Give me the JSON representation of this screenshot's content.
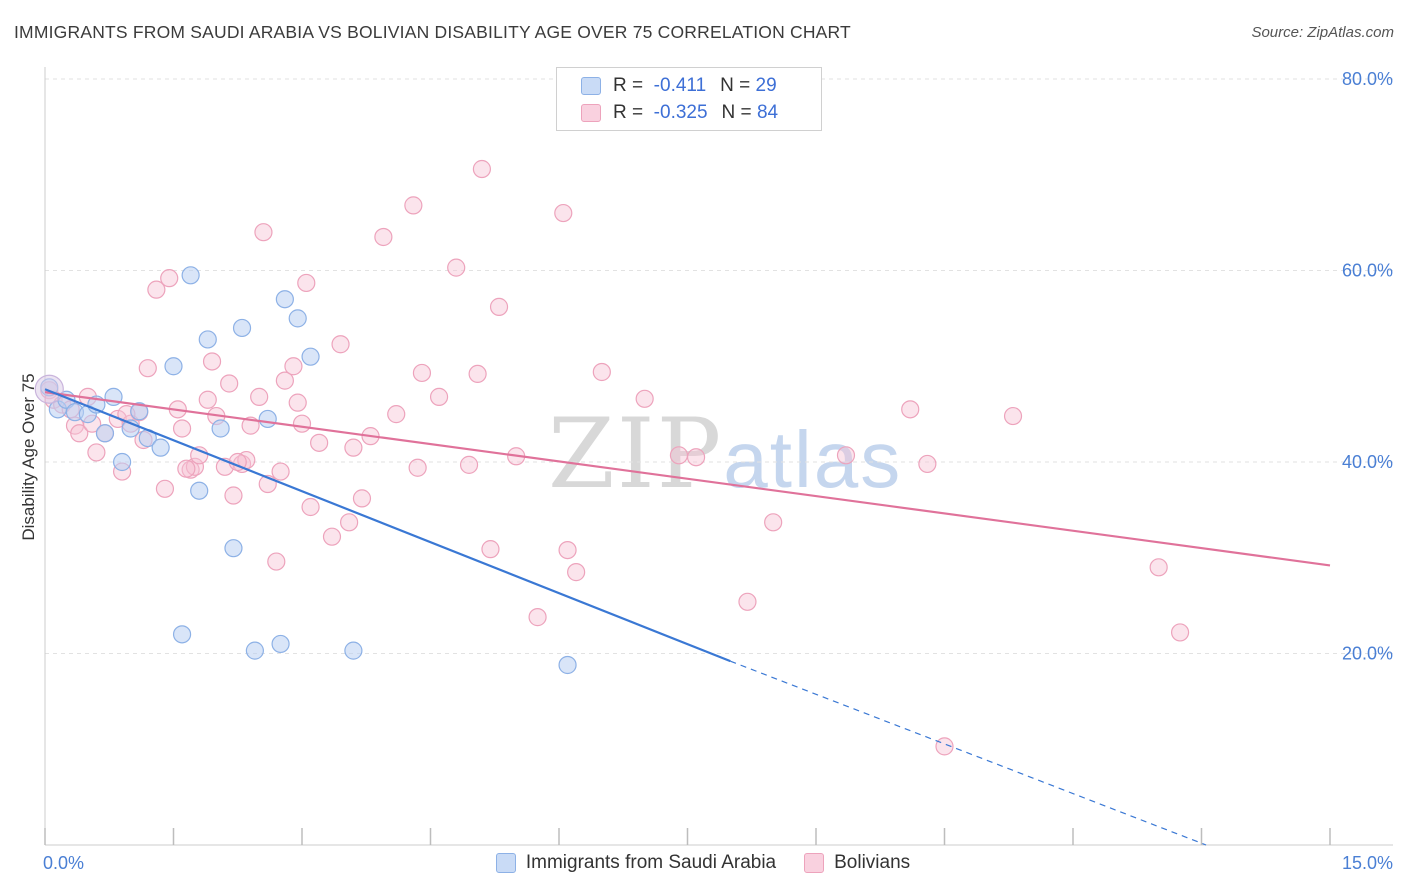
{
  "header": {
    "title": "IMMIGRANTS FROM SAUDI ARABIA VS BOLIVIAN DISABILITY AGE OVER 75 CORRELATION CHART",
    "source": "Source: ZipAtlas.com"
  },
  "watermark": {
    "zip": "ZIP",
    "atlas": "atlas"
  },
  "legend": {
    "rows": [
      {
        "r_label": "R =",
        "r_value": "-0.411",
        "n_label": "N =",
        "n_value": "29"
      },
      {
        "r_label": "R =",
        "r_value": "-0.325",
        "n_label": "N =",
        "n_value": "84"
      }
    ]
  },
  "bottom_legend": {
    "items": [
      {
        "label": "Immigrants from Saudi Arabia"
      },
      {
        "label": "Bolivians"
      }
    ]
  },
  "colors": {
    "blue_fill": "#b9d0f3",
    "blue_stroke": "#8db1e6",
    "blue_line": "#3a78d4",
    "pink_fill": "#f6c3d4",
    "pink_stroke": "#eda3bc",
    "pink_line": "#e0729a",
    "grid": "#e2e2e2",
    "tick_label": "#4a7fd4"
  },
  "chart_data": {
    "type": "scatter",
    "title": "IMMIGRANTS FROM SAUDI ARABIA VS BOLIVIAN DISABILITY AGE OVER 75 CORRELATION CHART",
    "xlabel": "",
    "ylabel": "Disability Age Over 75",
    "xlim": [
      0,
      15
    ],
    "ylim": [
      0,
      80
    ],
    "x_tick_labels": [
      "0.0%",
      "15.0%"
    ],
    "y_ticks": [
      20,
      40,
      60,
      80
    ],
    "y_tick_labels": [
      "20.0%",
      "40.0%",
      "60.0%",
      "80.0%"
    ],
    "grid": true,
    "legend_position": "top-center",
    "series": [
      {
        "name": "Immigrants from Saudi Arabia",
        "color": "#b9d0f3",
        "points": [
          [
            0.05,
            47.8
          ],
          [
            0.15,
            45.5
          ],
          [
            0.25,
            46.5
          ],
          [
            0.35,
            45.2
          ],
          [
            0.5,
            45.0
          ],
          [
            0.6,
            46.0
          ],
          [
            0.7,
            43.0
          ],
          [
            0.8,
            46.8
          ],
          [
            0.9,
            40.0
          ],
          [
            1.0,
            43.5
          ],
          [
            1.1,
            45.3
          ],
          [
            1.2,
            42.5
          ],
          [
            1.35,
            41.5
          ],
          [
            1.5,
            50.0
          ],
          [
            1.6,
            22.0
          ],
          [
            1.7,
            59.5
          ],
          [
            1.8,
            37.0
          ],
          [
            1.9,
            52.8
          ],
          [
            2.05,
            43.5
          ],
          [
            2.2,
            31.0
          ],
          [
            2.3,
            54.0
          ],
          [
            2.45,
            20.3
          ],
          [
            2.6,
            44.5
          ],
          [
            2.75,
            21.0
          ],
          [
            2.8,
            57.0
          ],
          [
            2.95,
            55.0
          ],
          [
            3.1,
            51.0
          ],
          [
            3.6,
            20.3
          ],
          [
            6.1,
            18.8
          ]
        ],
        "trend": {
          "x": [
            0,
            8.0
          ],
          "y": [
            47.6,
            19.2
          ],
          "dashed_to": [
            15,
            -5.0
          ]
        }
      },
      {
        "name": "Bolivians",
        "color": "#f6c3d4",
        "points": [
          [
            0.05,
            47.5
          ],
          [
            0.1,
            46.5
          ],
          [
            0.2,
            46.0
          ],
          [
            0.3,
            45.5
          ],
          [
            0.35,
            43.8
          ],
          [
            0.4,
            43.0
          ],
          [
            0.5,
            46.8
          ],
          [
            0.55,
            44.0
          ],
          [
            0.6,
            41.0
          ],
          [
            0.7,
            43.0
          ],
          [
            0.85,
            44.5
          ],
          [
            0.9,
            39.0
          ],
          [
            1.0,
            44.0
          ],
          [
            1.1,
            45.2
          ],
          [
            1.15,
            42.3
          ],
          [
            1.2,
            49.8
          ],
          [
            1.3,
            58.0
          ],
          [
            1.4,
            37.2
          ],
          [
            1.45,
            59.2
          ],
          [
            1.55,
            45.5
          ],
          [
            1.6,
            43.5
          ],
          [
            1.7,
            39.2
          ],
          [
            1.75,
            39.5
          ],
          [
            1.8,
            40.7
          ],
          [
            1.9,
            46.5
          ],
          [
            1.95,
            50.5
          ],
          [
            2.0,
            44.8
          ],
          [
            2.1,
            39.5
          ],
          [
            2.15,
            48.2
          ],
          [
            2.2,
            36.5
          ],
          [
            2.3,
            39.8
          ],
          [
            2.35,
            40.2
          ],
          [
            2.4,
            43.8
          ],
          [
            2.5,
            46.8
          ],
          [
            2.55,
            64.0
          ],
          [
            2.6,
            37.7
          ],
          [
            2.7,
            29.6
          ],
          [
            2.75,
            39.0
          ],
          [
            2.8,
            48.5
          ],
          [
            2.9,
            50.0
          ],
          [
            2.95,
            46.2
          ],
          [
            3.05,
            58.7
          ],
          [
            3.1,
            35.3
          ],
          [
            3.2,
            42.0
          ],
          [
            3.35,
            32.2
          ],
          [
            3.45,
            52.3
          ],
          [
            3.55,
            33.7
          ],
          [
            3.6,
            41.5
          ],
          [
            3.7,
            36.2
          ],
          [
            3.8,
            42.7
          ],
          [
            3.95,
            63.5
          ],
          [
            4.1,
            45.0
          ],
          [
            4.3,
            66.8
          ],
          [
            4.35,
            39.4
          ],
          [
            4.4,
            49.3
          ],
          [
            4.6,
            46.8
          ],
          [
            4.8,
            60.3
          ],
          [
            4.95,
            39.7
          ],
          [
            5.05,
            49.2
          ],
          [
            5.2,
            30.9
          ],
          [
            5.3,
            56.2
          ],
          [
            5.5,
            40.6
          ],
          [
            5.75,
            23.8
          ],
          [
            6.05,
            66.0
          ],
          [
            6.1,
            30.8
          ],
          [
            6.2,
            28.5
          ],
          [
            6.5,
            49.4
          ],
          [
            7.0,
            46.6
          ],
          [
            7.4,
            40.7
          ],
          [
            7.6,
            40.5
          ],
          [
            8.2,
            25.4
          ],
          [
            8.5,
            33.7
          ],
          [
            9.35,
            40.7
          ],
          [
            10.1,
            45.5
          ],
          [
            10.3,
            39.8
          ],
          [
            10.5,
            10.3
          ],
          [
            11.3,
            44.8
          ],
          [
            13.0,
            29.0
          ],
          [
            13.25,
            22.2
          ],
          [
            5.1,
            70.6
          ],
          [
            3.0,
            44.0
          ],
          [
            1.65,
            39.3
          ],
          [
            0.95,
            45.0
          ],
          [
            2.25,
            40.0
          ]
        ],
        "trend": {
          "x": [
            0,
            15
          ],
          "y": [
            47.3,
            29.2
          ]
        }
      }
    ]
  }
}
